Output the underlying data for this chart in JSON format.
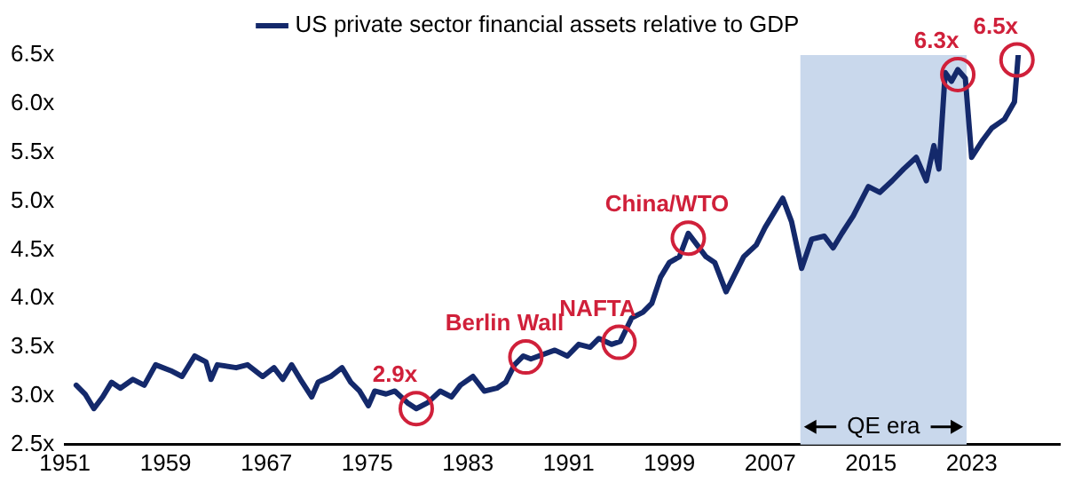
{
  "chart_data": {
    "type": "line",
    "x": [
      1951.9,
      1952.6,
      1953.3,
      1954.0,
      1954.7,
      1955.4,
      1956.4,
      1957.3,
      1958.2,
      1959.4,
      1960.3,
      1961.3,
      1962.2,
      1962.6,
      1963.1,
      1964.6,
      1965.5,
      1966.7,
      1967.6,
      1968.3,
      1969.0,
      1969.7,
      1970.6,
      1971.1,
      1972.1,
      1973.0,
      1973.7,
      1974.4,
      1975.1,
      1975.6,
      1976.5,
      1977.2,
      1978.2,
      1978.9,
      1979.8,
      1980.8,
      1981.7,
      1982.4,
      1983.4,
      1984.3,
      1985.3,
      1986.0,
      1986.7,
      1987.4,
      1988.0,
      1989.9,
      1990.9,
      1991.8,
      1992.7,
      1993.4,
      1994.4,
      1995.1,
      1996.0,
      1996.9,
      1997.6,
      1998.3,
      1999.0,
      1999.8,
      2000.5,
      2001.2,
      2001.9,
      2002.6,
      2003.5,
      2004.2,
      2004.9,
      2005.9,
      2006.6,
      2008.0,
      2008.7,
      2009.5,
      2010.3,
      2011.3,
      2012.0,
      2012.7,
      2013.6,
      2014.8,
      2015.7,
      2016.7,
      2017.6,
      2018.6,
      2019.4,
      2020.0,
      2020.4,
      2020.9,
      2021.4,
      2021.9,
      2022.5,
      2023.0,
      2023.9,
      2024.6,
      2025.6,
      2026.4,
      2026.7
    ],
    "series": [
      {
        "name": "US private sector financial assets relative to GDP",
        "color": "#14296b",
        "values": [
          3.11,
          3.02,
          2.87,
          2.99,
          3.14,
          3.08,
          3.17,
          3.11,
          3.32,
          3.26,
          3.2,
          3.41,
          3.35,
          3.17,
          3.32,
          3.29,
          3.32,
          3.2,
          3.29,
          3.17,
          3.32,
          3.17,
          2.99,
          3.14,
          3.2,
          3.29,
          3.14,
          3.05,
          2.9,
          3.05,
          3.02,
          3.05,
          2.93,
          2.87,
          2.93,
          3.05,
          2.99,
          3.11,
          3.2,
          3.05,
          3.08,
          3.14,
          3.32,
          3.41,
          3.38,
          3.47,
          3.41,
          3.53,
          3.5,
          3.59,
          3.53,
          3.56,
          3.8,
          3.86,
          3.95,
          4.22,
          4.37,
          4.43,
          4.67,
          4.55,
          4.43,
          4.37,
          4.07,
          4.25,
          4.43,
          4.55,
          4.73,
          5.03,
          4.79,
          4.31,
          4.61,
          4.64,
          4.52,
          4.67,
          4.85,
          5.15,
          5.09,
          5.21,
          5.33,
          5.45,
          5.21,
          5.57,
          5.33,
          6.32,
          6.23,
          6.35,
          6.26,
          5.45,
          5.63,
          5.75,
          5.84,
          6.02,
          6.5
        ]
      }
    ],
    "xlim": [
      1951,
      2030
    ],
    "xticks": [
      1951,
      1959,
      1967,
      1975,
      1983,
      1991,
      1999,
      2007,
      2015,
      2023
    ],
    "ylim": [
      2.5,
      6.5
    ],
    "yticks": [
      {
        "value": 2.5,
        "label": "2.5x"
      },
      {
        "value": 3,
        "label": "3.0x"
      },
      {
        "value": 3.5,
        "label": "3.5x"
      },
      {
        "value": 4,
        "label": "4.0x"
      },
      {
        "value": 4.5,
        "label": "4.5x"
      },
      {
        "value": 5,
        "label": "5.0x"
      },
      {
        "value": 5.5,
        "label": "5.5x"
      },
      {
        "value": 6,
        "label": "6.0x"
      },
      {
        "value": 6.5,
        "label": "6.5x"
      }
    ],
    "bands": [
      {
        "axis": "x",
        "from": 2009.4,
        "to": 2022.6,
        "label": "QE era",
        "color": "#c9d8ec"
      }
    ],
    "annotations": [
      {
        "text": "2.9x",
        "x": 1978.9,
        "y": 2.87
      },
      {
        "text": "Berlin Wall",
        "x": 1987.6,
        "y": 3.4
      },
      {
        "text": "NAFTA",
        "x": 1995.0,
        "y": 3.55
      },
      {
        "text": "China/WTO",
        "x": 2000.5,
        "y": 4.62
      },
      {
        "text": "6.3x",
        "x": 2021.9,
        "y": 6.3
      },
      {
        "text": "6.5x",
        "x": 2026.6,
        "y": 6.45
      }
    ],
    "legend": "top",
    "grid": false,
    "line_style": "solid",
    "marker": "none"
  }
}
